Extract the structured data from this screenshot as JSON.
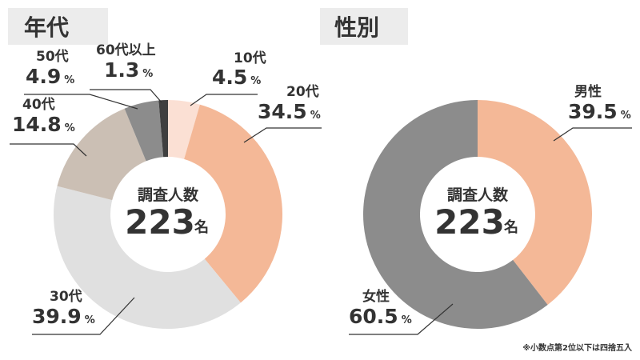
{
  "footnote": "※小数点第2位以下は四捨五入",
  "chart_data": [
    {
      "type": "donut",
      "title": "年代",
      "center_label": "調査人数",
      "total": 223,
      "total_unit": "名",
      "unit": "%",
      "categories": [
        "10代",
        "20代",
        "30代",
        "40代",
        "50代",
        "60代以上"
      ],
      "values": [
        4.5,
        34.5,
        39.9,
        14.8,
        4.9,
        1.3
      ],
      "colors": [
        "#fbe0d4",
        "#f4b897",
        "#e0e0e0",
        "#cbbfb4",
        "#8c8c8c",
        "#3f3f3f"
      ]
    },
    {
      "type": "donut",
      "title": "性別",
      "center_label": "調査人数",
      "total": 223,
      "total_unit": "名",
      "unit": "%",
      "categories": [
        "男性",
        "女性"
      ],
      "values": [
        39.5,
        60.5
      ],
      "colors": [
        "#f4b897",
        "#8c8c8c"
      ]
    }
  ]
}
